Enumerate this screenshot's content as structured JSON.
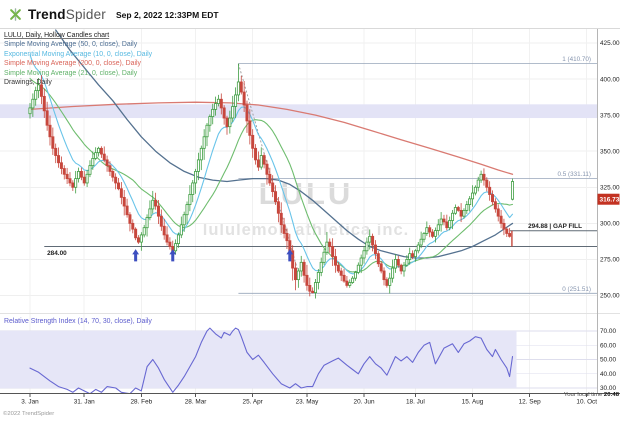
{
  "header": {
    "brand_bold": "Trend",
    "brand_light": "Spider",
    "timestamp": "Sep 2, 2022 12:33PM EDT"
  },
  "legend": {
    "rows": [
      {
        "label": "LULU, Daily, Hollow Candles chart",
        "color": "#222222"
      },
      {
        "label": "Simple Moving Average (50, 0, close), Daily",
        "color": "#4d6e93"
      },
      {
        "label": "Exponential Moving Average (10, 0, close), Daily",
        "color": "#55b8e0"
      },
      {
        "label": "Simple Moving Average (200, 0, close), Daily",
        "color": "#d96358"
      },
      {
        "label": "Simple Moving Average (21, 0, close), Daily",
        "color": "#5eb167"
      },
      {
        "label": "Drawings, Daily",
        "color": "#333333"
      }
    ]
  },
  "watermark": {
    "line1": "LULU",
    "line2": "lululemon athletica inc."
  },
  "footer": {
    "copyright": "©2022 TrendSpider",
    "local_time_label": "Your local time",
    "local_time_value": "20:48"
  },
  "chart_data": {
    "type": "candlestick",
    "symbol": "LULU",
    "timeframe": "Daily",
    "style": "Hollow Candles",
    "colors": {
      "up": "#3f9e42",
      "down": "#c7473d",
      "sma50": "#54718f",
      "ema10": "#69c4e9",
      "sma200": "#d97a72",
      "sma21": "#6fbd6f",
      "rsi": "#6868d2",
      "zone": "#e3e3f6",
      "rsi_band": "#e6e6f7",
      "badge": "#c33222",
      "fib_line": "#97a5ba",
      "fib_text": "#8594ae",
      "drawing_line": "#606b76",
      "gap_marker": "#c23b2e",
      "arrow": "#3d4fc0"
    },
    "price_axis": {
      "ticks": [
        425,
        400,
        375,
        350,
        325,
        300,
        275,
        250
      ],
      "ylim": [
        240,
        434
      ],
      "current": {
        "value": 316.73,
        "label": "316.73"
      }
    },
    "x_axis": {
      "labels": [
        {
          "day": 0,
          "text": "3. Jan"
        },
        {
          "day": 19,
          "text": "31. Jan"
        },
        {
          "day": 39,
          "text": "28. Feb"
        },
        {
          "day": 58,
          "text": "28. Mar"
        },
        {
          "day": 78,
          "text": "25. Apr"
        },
        {
          "day": 97,
          "text": "23. May"
        },
        {
          "day": 117,
          "text": "20. Jun"
        },
        {
          "day": 135,
          "text": "18. Jul"
        },
        {
          "day": 155,
          "text": "15. Aug"
        },
        {
          "day": 175,
          "text": "12. Sep"
        },
        {
          "day": 195,
          "text": "10. Oct"
        }
      ]
    },
    "candles": {
      "closes": [
        380,
        386,
        392,
        396,
        388,
        378,
        368,
        360,
        352,
        347,
        342,
        338,
        334,
        331,
        328,
        325,
        331,
        336,
        332,
        328,
        334,
        340,
        345,
        349,
        352,
        348,
        344,
        340,
        336,
        332,
        328,
        324,
        318,
        312,
        306,
        300,
        296,
        290,
        287,
        292,
        297,
        304,
        310,
        316,
        312,
        305,
        298,
        292,
        287,
        284,
        281,
        286,
        292,
        299,
        306,
        313,
        320,
        328,
        336,
        344,
        352,
        360,
        368,
        374,
        379,
        383,
        386,
        380,
        373,
        367,
        373,
        381,
        389,
        398,
        391,
        382,
        371,
        361,
        352,
        344,
        339,
        347,
        341,
        334,
        328,
        322,
        315,
        307,
        299,
        293,
        288,
        281,
        269,
        261,
        267,
        273,
        264,
        257,
        253,
        252,
        259,
        266,
        273,
        280,
        287,
        284,
        277,
        271,
        267,
        264,
        260,
        257,
        259,
        262,
        266,
        271,
        276,
        281,
        287,
        291,
        285,
        279,
        272,
        267,
        261,
        257,
        262,
        269,
        275,
        271,
        267,
        271,
        275,
        279,
        277,
        281,
        285,
        289,
        293,
        297,
        294,
        291,
        295,
        299,
        303,
        301,
        297,
        302,
        307,
        311,
        309,
        305,
        309,
        313,
        317,
        321,
        325,
        330,
        334,
        330,
        325,
        320,
        315,
        310,
        305,
        300,
        296,
        293,
        291
      ],
      "last": {
        "open": 329,
        "high": 331.0,
        "low": 315.9,
        "close": 316.73
      },
      "high_overrides": {
        "73": 410.7
      },
      "low_overrides": {
        "99": 251.51
      }
    },
    "ma": {
      "ema10_start": 425,
      "sma21_start": 425,
      "sma50": [
        [
          9,
          434
        ],
        [
          14,
          420
        ],
        [
          19,
          408
        ],
        [
          24,
          396
        ],
        [
          29,
          385
        ],
        [
          34,
          372
        ],
        [
          39,
          360
        ],
        [
          44,
          350
        ],
        [
          49,
          342
        ],
        [
          54,
          336
        ],
        [
          59,
          332
        ],
        [
          64,
          330
        ],
        [
          69,
          329
        ],
        [
          73,
          330
        ],
        [
          78,
          331
        ],
        [
          83,
          331
        ],
        [
          87,
          330
        ],
        [
          91,
          327
        ],
        [
          95,
          322
        ],
        [
          99,
          316
        ],
        [
          103,
          309
        ],
        [
          107,
          302
        ],
        [
          111,
          295
        ],
        [
          115,
          289
        ],
        [
          119,
          284
        ],
        [
          123,
          281
        ],
        [
          127,
          279
        ],
        [
          131,
          277
        ],
        [
          135,
          276
        ],
        [
          139,
          276
        ],
        [
          143,
          277
        ],
        [
          147,
          279
        ],
        [
          151,
          281
        ],
        [
          155,
          284
        ],
        [
          159,
          288
        ],
        [
          163,
          292
        ],
        [
          166,
          296
        ],
        [
          169,
          300
        ]
      ],
      "sma200": [
        [
          0,
          379
        ],
        [
          15,
          381
        ],
        [
          30,
          382.5
        ],
        [
          45,
          383.5
        ],
        [
          58,
          384
        ],
        [
          70,
          383.5
        ],
        [
          80,
          382
        ],
        [
          90,
          379
        ],
        [
          100,
          375
        ],
        [
          110,
          370
        ],
        [
          120,
          364
        ],
        [
          130,
          358
        ],
        [
          140,
          352
        ],
        [
          150,
          346
        ],
        [
          158,
          341
        ],
        [
          164,
          337
        ],
        [
          169,
          334
        ]
      ]
    },
    "rsi": {
      "label": "Relative Strength Index (14, 70, 30, close), Daily",
      "ticks": [
        70,
        60,
        50,
        40,
        30
      ],
      "band": [
        30,
        70
      ],
      "points": [
        [
          0,
          44
        ],
        [
          3,
          41
        ],
        [
          7,
          35
        ],
        [
          10,
          31
        ],
        [
          13,
          29
        ],
        [
          15,
          27
        ],
        [
          17,
          30
        ],
        [
          19,
          28
        ],
        [
          21,
          26
        ],
        [
          23,
          29
        ],
        [
          25,
          27
        ],
        [
          27,
          31
        ],
        [
          30,
          30
        ],
        [
          32,
          27
        ],
        [
          35,
          26
        ],
        [
          37,
          30
        ],
        [
          39,
          28
        ],
        [
          41,
          45
        ],
        [
          43,
          50
        ],
        [
          45,
          44
        ],
        [
          47,
          36
        ],
        [
          48,
          33
        ],
        [
          50,
          27
        ],
        [
          52,
          32
        ],
        [
          54,
          38
        ],
        [
          56,
          45
        ],
        [
          58,
          52
        ],
        [
          60,
          62
        ],
        [
          62,
          70
        ],
        [
          63,
          72
        ],
        [
          65,
          68
        ],
        [
          67,
          65
        ],
        [
          68,
          69
        ],
        [
          70,
          67
        ],
        [
          71,
          70
        ],
        [
          72,
          72
        ],
        [
          73,
          71
        ],
        [
          74,
          66
        ],
        [
          76,
          55
        ],
        [
          78,
          50
        ],
        [
          80,
          53
        ],
        [
          82,
          48
        ],
        [
          85,
          40
        ],
        [
          88,
          33
        ],
        [
          91,
          30
        ],
        [
          93,
          33
        ],
        [
          95,
          30
        ],
        [
          97,
          31
        ],
        [
          99,
          31
        ],
        [
          101,
          40
        ],
        [
          103,
          46
        ],
        [
          106,
          49
        ],
        [
          108,
          51
        ],
        [
          111,
          46
        ],
        [
          113,
          43
        ],
        [
          115,
          40
        ],
        [
          117,
          47
        ],
        [
          119,
          52
        ],
        [
          121,
          47
        ],
        [
          123,
          44
        ],
        [
          125,
          39
        ],
        [
          128,
          52
        ],
        [
          130,
          49
        ],
        [
          132,
          52
        ],
        [
          134,
          48
        ],
        [
          136,
          55
        ],
        [
          138,
          60
        ],
        [
          140,
          62
        ],
        [
          142,
          47
        ],
        [
          145,
          58
        ],
        [
          148,
          61
        ],
        [
          150,
          55
        ],
        [
          152,
          61
        ],
        [
          154,
          63
        ],
        [
          156,
          66
        ],
        [
          158,
          65
        ],
        [
          160,
          57
        ],
        [
          162,
          52
        ],
        [
          163,
          57
        ],
        [
          165,
          50
        ],
        [
          167,
          44
        ],
        [
          168,
          38
        ],
        [
          169,
          52
        ]
      ]
    },
    "drawings": {
      "zone": {
        "from": 373,
        "to": 382.5
      },
      "support": {
        "price": 284.0,
        "label": "284.00",
        "start_day": 5
      },
      "gap_fill": {
        "price": 294.88,
        "label": "294.88 | GAP FILL",
        "start_day": 168,
        "marker_low": 284.0
      },
      "fib": {
        "start_day": 73,
        "levels": [
          {
            "label": "1 (410.70)",
            "value": 410.7
          },
          {
            "label": "0.5 (331.11)",
            "value": 331.11
          },
          {
            "label": "0 (251.51)",
            "value": 251.51
          }
        ]
      },
      "trendline": {
        "from": [
          73,
          410.7
        ],
        "to": [
          94,
          266
        ]
      },
      "arrows": {
        "days": [
          37,
          50,
          91
        ],
        "price": 283.5
      }
    }
  }
}
